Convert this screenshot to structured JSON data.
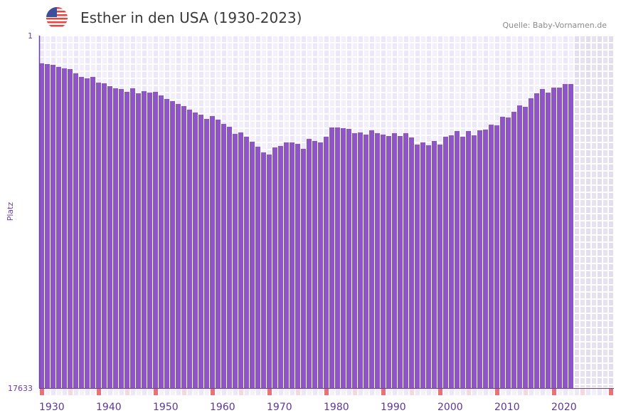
{
  "header": {
    "title": "Esther in den USA (1930-2023)",
    "source": "Quelle: Baby-Vornamen.de",
    "flag_icon": "us-flag-icon"
  },
  "colors": {
    "bar": "#8e55c6",
    "axis": "#6a3fa0",
    "marker_decade": "#e8727a",
    "marker_half": "#f6d8e0",
    "future": "#e4e0ee"
  },
  "chart_data": {
    "type": "bar",
    "title": "Esther in den USA (1930-2023)",
    "xlabel": "",
    "ylabel": "Platz",
    "y_ticks": [
      "1",
      "17633"
    ],
    "ylim": [
      1,
      17633
    ],
    "y_inverted": true,
    "x_range": [
      1930,
      2030
    ],
    "x_ticks": [
      "1930",
      "1940",
      "1950",
      "1960",
      "1970",
      "1980",
      "1990",
      "2000",
      "2010",
      "2020"
    ],
    "grid": true,
    "start_year": 1930,
    "values": [
      109,
      115,
      121,
      139,
      152,
      159,
      202,
      242,
      259,
      242,
      314,
      323,
      363,
      394,
      405,
      449,
      394,
      472,
      438,
      461,
      449,
      508,
      570,
      609,
      663,
      705,
      778,
      839,
      887,
      985,
      919,
      1002,
      1107,
      1179,
      1371,
      1331,
      1451,
      1598,
      1751,
      1936,
      2007,
      1774,
      1729,
      1619,
      1619,
      1663,
      1819,
      1513,
      1576,
      1619,
      1451,
      1198,
      1198,
      1216,
      1235,
      1351,
      1331,
      1391,
      1273,
      1351,
      1391,
      1431,
      1351,
      1431,
      1351,
      1472,
      1685,
      1619,
      1707,
      1576,
      1685,
      1451,
      1411,
      1292,
      1451,
      1292,
      1411,
      1273,
      1254,
      1125,
      1143,
      935,
      952,
      824,
      692,
      720,
      557,
      472,
      405,
      461,
      384,
      384,
      333,
      333
    ]
  }
}
